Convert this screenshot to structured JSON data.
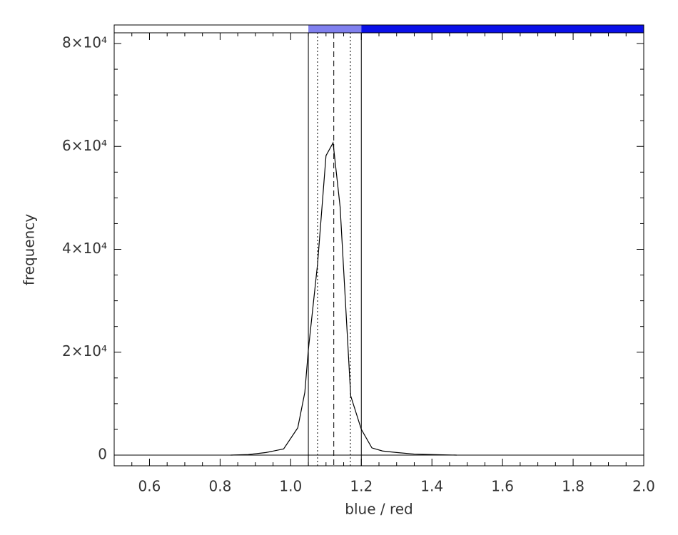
{
  "chart_data": {
    "type": "line",
    "xlabel": "blue / red",
    "ylabel": "frequency",
    "x": [
      0.83,
      0.88,
      0.93,
      0.98,
      1.02,
      1.04,
      1.05,
      1.076,
      1.1,
      1.12,
      1.14,
      1.17,
      1.2,
      1.23,
      1.26,
      1.3,
      1.35,
      1.4,
      1.47
    ],
    "values": [
      0,
      100,
      500,
      1200,
      5300,
      12200,
      20500,
      37100,
      58200,
      60700,
      48200,
      11500,
      5000,
      1400,
      800,
      500,
      200,
      100,
      0
    ],
    "color": "#000000",
    "xlim": [
      0.5,
      2.0
    ],
    "xticks": [
      0.6,
      0.8,
      {
        "value": 1,
        "label": "1.0"
      },
      1.2,
      1.4,
      1.6,
      1.8,
      {
        "value": 2,
        "label": "2.0"
      }
    ],
    "xminorticks": [
      0.55,
      0.65,
      0.7,
      0.75,
      0.85,
      0.9,
      0.95,
      1.05,
      1.1,
      1.15,
      1.25,
      1.3,
      1.35,
      1.45,
      1.5,
      1.55,
      1.65,
      1.7,
      1.75,
      1.85,
      1.9,
      1.95
    ],
    "ylim": [
      -2080,
      82080
    ],
    "yticks": [
      0,
      {
        "value": 20000,
        "label": "2×10⁴"
      },
      {
        "value": 40000,
        "label": "4×10⁴"
      },
      {
        "value": 60000,
        "label": "6×10⁴"
      },
      {
        "value": 80000,
        "label": "8×10⁴"
      }
    ],
    "yminorticks": [
      5000,
      10000,
      15000,
      25000,
      30000,
      35000,
      45000,
      50000,
      55000,
      65000,
      70000,
      75000
    ],
    "bands": [
      {
        "from": 0.5,
        "to": 1.05,
        "color": "#ffffff"
      },
      {
        "from": 1.05,
        "to": 1.2,
        "color": "#8080ee"
      },
      {
        "from": 1.2,
        "to": 2.0,
        "color": "#0a10e8"
      }
    ],
    "vlines": [
      {
        "x": 1.05,
        "dash": "solid"
      },
      {
        "x": 1.076,
        "dash": "dotted"
      },
      {
        "x": 1.122,
        "dash": "dashed"
      },
      {
        "x": 1.169,
        "dash": "dotted"
      },
      {
        "x": 1.2,
        "dash": "solid"
      }
    ]
  }
}
